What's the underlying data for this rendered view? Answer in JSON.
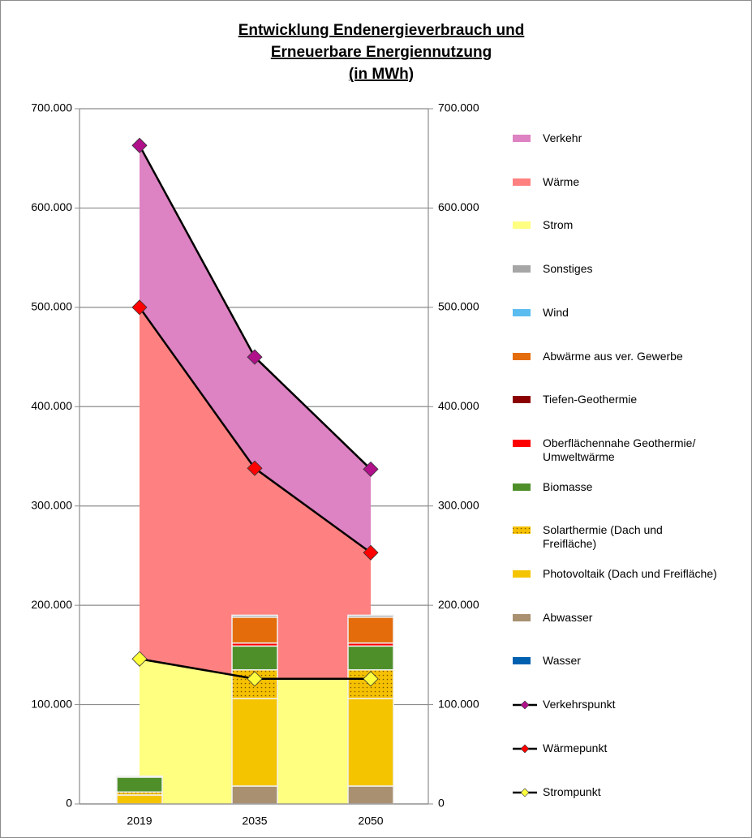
{
  "chart_data": {
    "type": "combo",
    "title": [
      "Entwicklung Endenergieverbrauch  und",
      "Erneuerbare  Energiennutzung",
      "(in MWh)"
    ],
    "categories": [
      "2019",
      "2035",
      "2050"
    ],
    "ylim": [
      0,
      700000
    ],
    "yticks": [
      0,
      {
        "value": 100000,
        "label": "100.000"
      },
      {
        "value": 200000,
        "label": "200.000"
      },
      {
        "value": 300000,
        "label": "300.000"
      },
      {
        "value": 400000,
        "label": "400.000"
      },
      {
        "value": 500000,
        "label": "500.000"
      },
      {
        "value": 600000,
        "label": "600.000"
      },
      {
        "value": 700000,
        "label": "700.000"
      }
    ],
    "y2lim": [
      0,
      700000
    ],
    "y2ticks": [
      0,
      {
        "value": 100000,
        "label": "100.000"
      },
      {
        "value": 200000,
        "label": "200.000"
      },
      {
        "value": 300000,
        "label": "300.000"
      },
      {
        "value": 400000,
        "label": "400.000"
      },
      {
        "value": 500000,
        "label": "500.000"
      },
      {
        "value": 600000,
        "label": "600.000"
      },
      {
        "value": 700000,
        "label": "700.000"
      }
    ],
    "grid": true,
    "legend": "right",
    "series": [
      {
        "name": "Verkehr",
        "kind": "area",
        "color": "#dd82c2",
        "values": [
          163000,
          112000,
          84000
        ]
      },
      {
        "name": "Wärme",
        "kind": "area",
        "color": "#ff8080",
        "values": [
          354000,
          212000,
          127000
        ]
      },
      {
        "name": "Strom",
        "kind": "area",
        "color": "#ffff80",
        "values": [
          146000,
          126000,
          126000
        ]
      },
      {
        "name": "Sonstiges",
        "kind": "bar",
        "color": "#a6a6a6",
        "values": [
          0,
          2000,
          2000
        ]
      },
      {
        "name": "Wind",
        "kind": "bar",
        "color": "#5bbcf0",
        "values": [
          1000,
          0,
          0
        ]
      },
      {
        "name": "Abwärme aus ver. Gewerbe",
        "kind": "bar",
        "color": "#e46c0a",
        "values": [
          0,
          26000,
          26000
        ]
      },
      {
        "name": "Tiefen-Geothermie",
        "kind": "bar",
        "color": "#8b0000",
        "values": [
          0,
          0,
          0
        ]
      },
      {
        "name": "Oberflächennahe Geothermie/ Umweltwärme",
        "kind": "bar",
        "color": "#ff0000",
        "values": [
          0,
          3000,
          3000
        ]
      },
      {
        "name": "Biomasse",
        "kind": "bar",
        "color": "#4e8f2a",
        "values": [
          15000,
          24000,
          24000
        ]
      },
      {
        "name": "Solarthermie (Dach und Freifläche)",
        "kind": "bar",
        "color": "#f5c000",
        "pattern": "dotted",
        "values": [
          3000,
          29000,
          29000
        ]
      },
      {
        "name": "Photovoltaik (Dach und Freifläche)",
        "kind": "bar",
        "color": "#f5c400",
        "values": [
          9000,
          88000,
          88000
        ]
      },
      {
        "name": "Abwasser",
        "kind": "bar",
        "color": "#a89070",
        "values": [
          0,
          18000,
          18000
        ]
      },
      {
        "name": "Wasser",
        "kind": "bar",
        "color": "#0060b0",
        "values": [
          0,
          0,
          0
        ]
      },
      {
        "name": "Verkehrspunkt",
        "kind": "line",
        "color": "#000000",
        "marker_color": "#b0108a",
        "values": [
          663000,
          450000,
          337000
        ]
      },
      {
        "name": "Wärmepunkt",
        "kind": "line",
        "color": "#000000",
        "marker_color": "#ff0000",
        "values": [
          500000,
          338000,
          253000
        ]
      },
      {
        "name": "Strompunkt",
        "kind": "line",
        "color": "#000000",
        "marker_color": "#ffff40",
        "values": [
          146000,
          126000,
          126000
        ]
      }
    ]
  }
}
